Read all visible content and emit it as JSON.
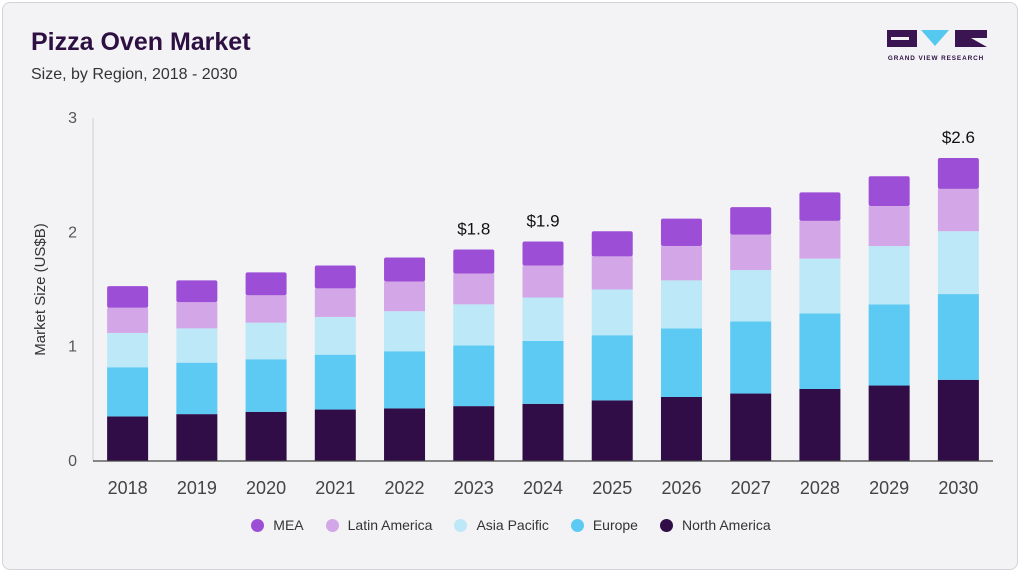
{
  "header": {
    "title": "Pizza Oven Market",
    "subtitle": "Size, by Region, 2018 - 2030"
  },
  "logo": {
    "text": "GRAND VIEW RESEARCH",
    "colors": {
      "dark": "#3b1552",
      "accent": "#55c8f0"
    }
  },
  "chart_data": {
    "type": "bar",
    "stacked": true,
    "categories": [
      "2018",
      "2019",
      "2020",
      "2021",
      "2022",
      "2023",
      "2024",
      "2025",
      "2026",
      "2027",
      "2028",
      "2029",
      "2030"
    ],
    "series": [
      {
        "name": "North America",
        "color": "#300d47",
        "values": [
          0.39,
          0.41,
          0.43,
          0.45,
          0.46,
          0.48,
          0.5,
          0.53,
          0.56,
          0.59,
          0.63,
          0.66,
          0.71
        ]
      },
      {
        "name": "Europe",
        "color": "#5ccaf2",
        "values": [
          0.43,
          0.45,
          0.46,
          0.48,
          0.5,
          0.53,
          0.55,
          0.57,
          0.6,
          0.63,
          0.66,
          0.71,
          0.75
        ]
      },
      {
        "name": "Asia Pacific",
        "color": "#bde8f8",
        "values": [
          0.3,
          0.3,
          0.32,
          0.33,
          0.35,
          0.36,
          0.38,
          0.4,
          0.42,
          0.45,
          0.48,
          0.51,
          0.55
        ]
      },
      {
        "name": "Latin America",
        "color": "#d3a6e8",
        "values": [
          0.22,
          0.23,
          0.24,
          0.25,
          0.26,
          0.27,
          0.28,
          0.29,
          0.3,
          0.31,
          0.33,
          0.35,
          0.37
        ]
      },
      {
        "name": "MEA",
        "color": "#9c4fd6",
        "values": [
          0.19,
          0.19,
          0.2,
          0.2,
          0.21,
          0.21,
          0.21,
          0.22,
          0.24,
          0.24,
          0.25,
          0.26,
          0.27
        ]
      }
    ],
    "annotations": [
      {
        "category": "2023",
        "text": "$1.8"
      },
      {
        "category": "2024",
        "text": "$1.9"
      },
      {
        "category": "2030",
        "text": "$2.6"
      }
    ],
    "xlabel": "",
    "ylabel": "Market Size (US$B)",
    "ylim": [
      0,
      3
    ],
    "yticks": [
      "0",
      "1",
      "2",
      "3"
    ],
    "legend_order": [
      "MEA",
      "Latin America",
      "Asia Pacific",
      "Europe",
      "North America"
    ],
    "legend_position": "bottom",
    "grid": false
  }
}
